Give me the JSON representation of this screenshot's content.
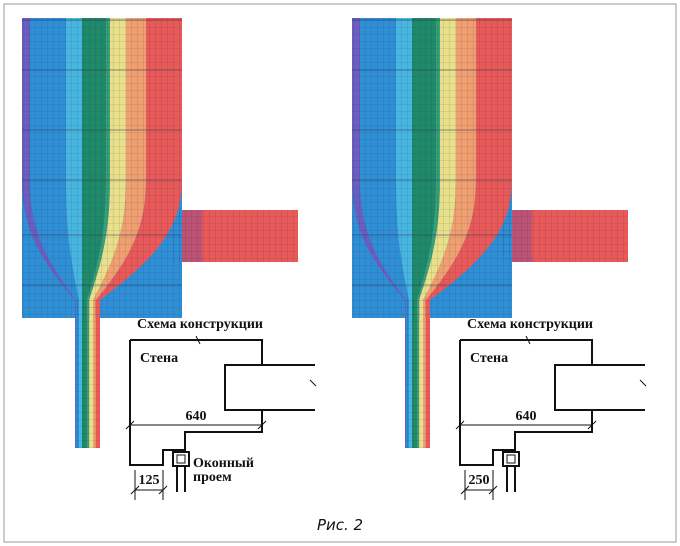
{
  "panels": [
    {
      "scheme_title": "Схема конструкции",
      "wall_label": "Стена",
      "width_dim": "640",
      "reveal_dim": "125",
      "opening_label": [
        "Оконный",
        "проем"
      ]
    },
    {
      "scheme_title": "Схема конструкции",
      "wall_label": "Стена",
      "width_dim": "640",
      "reveal_dim": "250"
    }
  ],
  "caption": "Рис. 2"
}
